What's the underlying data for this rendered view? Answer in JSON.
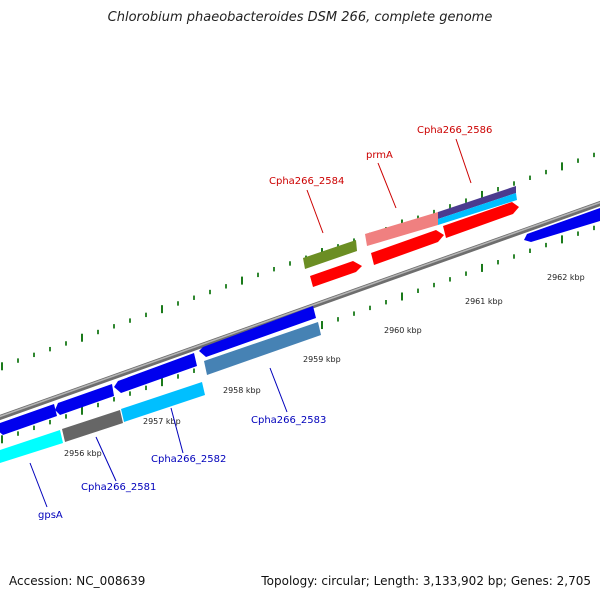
{
  "title": "Chlorobium phaeobacteroides DSM 266, complete genome",
  "footer": {
    "accession": "Accession: NC_008639",
    "topology": "Topology: circular; Length: 3,133,902 bp; Genes: 2,705"
  },
  "colors": {
    "backbone": "#8a8a8a",
    "tick": "#1a7a1a",
    "label_forward": "#cc0000",
    "label_reverse": "#0000bb"
  },
  "scale": {
    "unit": "kbp",
    "labels": [
      "2956 kbp",
      "2957 kbp",
      "2958 kbp",
      "2959 kbp",
      "2960 kbp",
      "2961 kbp",
      "2962 kbp"
    ]
  },
  "gene_labels": {
    "forward": [
      "Cpha266_2584",
      "prmA",
      "Cpha266_2586"
    ],
    "reverse": [
      "gpsA",
      "Cpha266_2581",
      "Cpha266_2582",
      "Cpha266_2583"
    ]
  }
}
